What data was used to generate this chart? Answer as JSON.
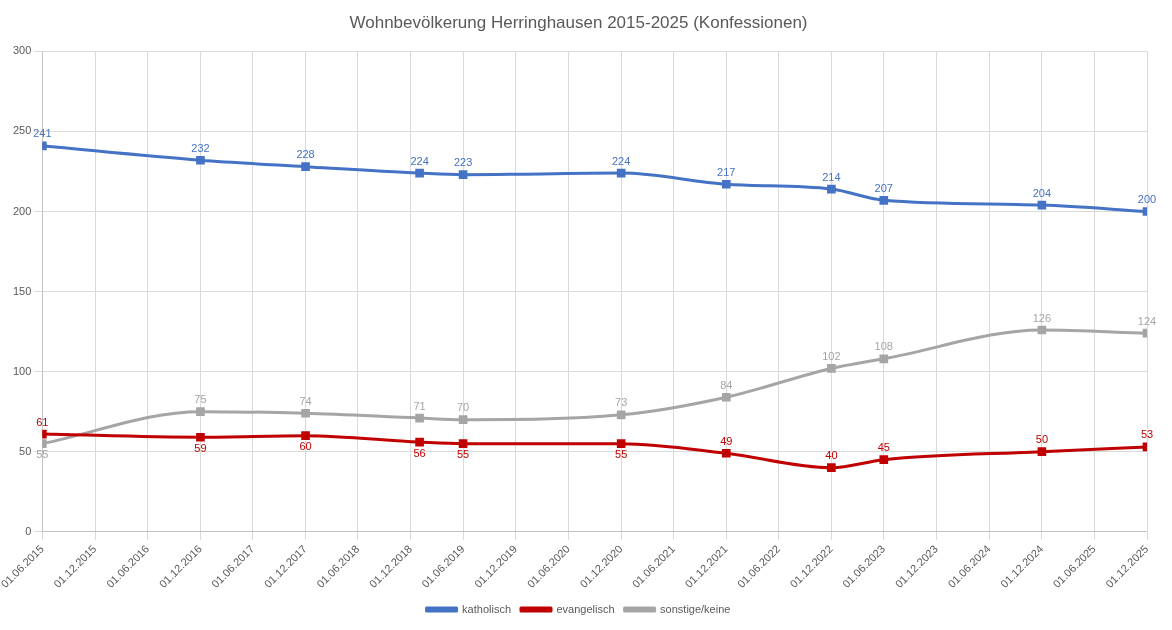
{
  "chart_data": {
    "type": "line",
    "title": "Wohnbevölkerung Herringhausen 2015-2025 (Konfessionen)",
    "x": [
      "2015-06-01",
      "2016-12-01",
      "2017-12-01",
      "2019-01-01",
      "2019-06-01",
      "2020-12-01",
      "2021-12-01",
      "2022-12-01",
      "2023-06-01",
      "2024-12-01",
      "2025-12-01"
    ],
    "series": [
      {
        "name": "katholisch",
        "color": "#4472c4",
        "values": [
          241,
          232,
          228,
          224,
          223,
          224,
          217,
          214,
          207,
          204,
          200
        ]
      },
      {
        "name": "evangelisch",
        "color": "#c00000",
        "values": [
          61,
          59,
          60,
          56,
          55,
          55,
          49,
          40,
          45,
          50,
          53
        ]
      },
      {
        "name": "sonstige/keine",
        "color": "#a5a5a5",
        "values": [
          55,
          75,
          74,
          71,
          70,
          73,
          84,
          102,
          108,
          126,
          124
        ]
      }
    ],
    "xlim": [
      "2015-06-01",
      "2025-12-01"
    ],
    "xticks": [
      {
        "value": "2015-06-01",
        "label": "01.06.2015"
      },
      {
        "value": "2015-12-01",
        "label": "01.12.2015"
      },
      {
        "value": "2016-06-01",
        "label": "01.06.2016"
      },
      {
        "value": "2016-12-01",
        "label": "01.12.2016"
      },
      {
        "value": "2017-06-01",
        "label": "01.06.2017"
      },
      {
        "value": "2017-12-01",
        "label": "01.12.2017"
      },
      {
        "value": "2018-06-01",
        "label": "01.06.2018"
      },
      {
        "value": "2018-12-01",
        "label": "01.12.2018"
      },
      {
        "value": "2019-06-01",
        "label": "01.06.2019"
      },
      {
        "value": "2019-12-01",
        "label": "01.12.2019"
      },
      {
        "value": "2020-06-01",
        "label": "01.06.2020"
      },
      {
        "value": "2020-12-01",
        "label": "01.12.2020"
      },
      {
        "value": "2021-06-01",
        "label": "01.06.2021"
      },
      {
        "value": "2021-12-01",
        "label": "01.12.2021"
      },
      {
        "value": "2022-06-01",
        "label": "01.06.2022"
      },
      {
        "value": "2022-12-01",
        "label": "01.12.2022"
      },
      {
        "value": "2023-06-01",
        "label": "01.06.2023"
      },
      {
        "value": "2023-12-01",
        "label": "01.12.2023"
      },
      {
        "value": "2024-06-01",
        "label": "01.06.2024"
      },
      {
        "value": "2024-12-01",
        "label": "01.12.2024"
      },
      {
        "value": "2025-06-01",
        "label": "01.06.2025"
      },
      {
        "value": "2025-12-01",
        "label": "01.12.2025"
      }
    ],
    "ylim": [
      0,
      300
    ],
    "yticks": [
      0,
      50,
      100,
      150,
      200,
      250,
      300
    ],
    "grid": true,
    "legend": "bottom",
    "marker": "square",
    "line_style": "solid",
    "data_labels": true
  }
}
